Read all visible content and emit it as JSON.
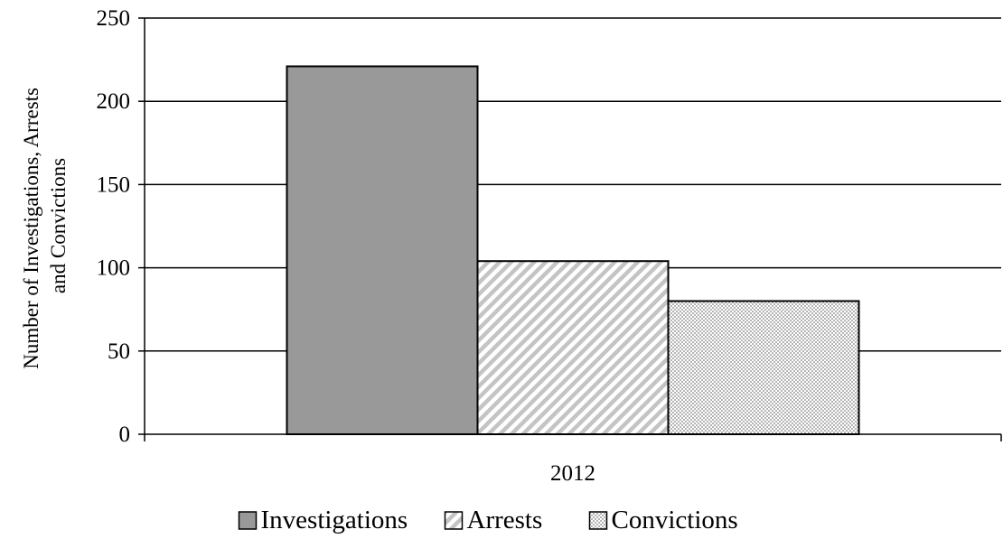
{
  "chart_data": {
    "type": "bar",
    "categories": [
      "2012"
    ],
    "series": [
      {
        "name": "Investigations",
        "values": [
          221
        ]
      },
      {
        "name": "Arrests",
        "values": [
          104
        ]
      },
      {
        "name": "Convictions",
        "values": [
          80
        ]
      }
    ],
    "ylabel_lines": [
      "Number of Investigations, Arrests",
      "and Convictions"
    ],
    "ylim": [
      0,
      250
    ],
    "yticks": [
      0,
      50,
      100,
      150,
      200,
      250
    ],
    "grid": true,
    "legend_position": "bottom",
    "styles": {
      "Investigations": {
        "fill": "#999999",
        "pattern": "solid"
      },
      "Arrests": {
        "fill": "#ffffff",
        "pattern": "diagonal-stripes",
        "stroke": "#c4c4c4"
      },
      "Convictions": {
        "fill": "#ffffff",
        "pattern": "dots",
        "stroke": "#b4b4b4"
      }
    }
  }
}
